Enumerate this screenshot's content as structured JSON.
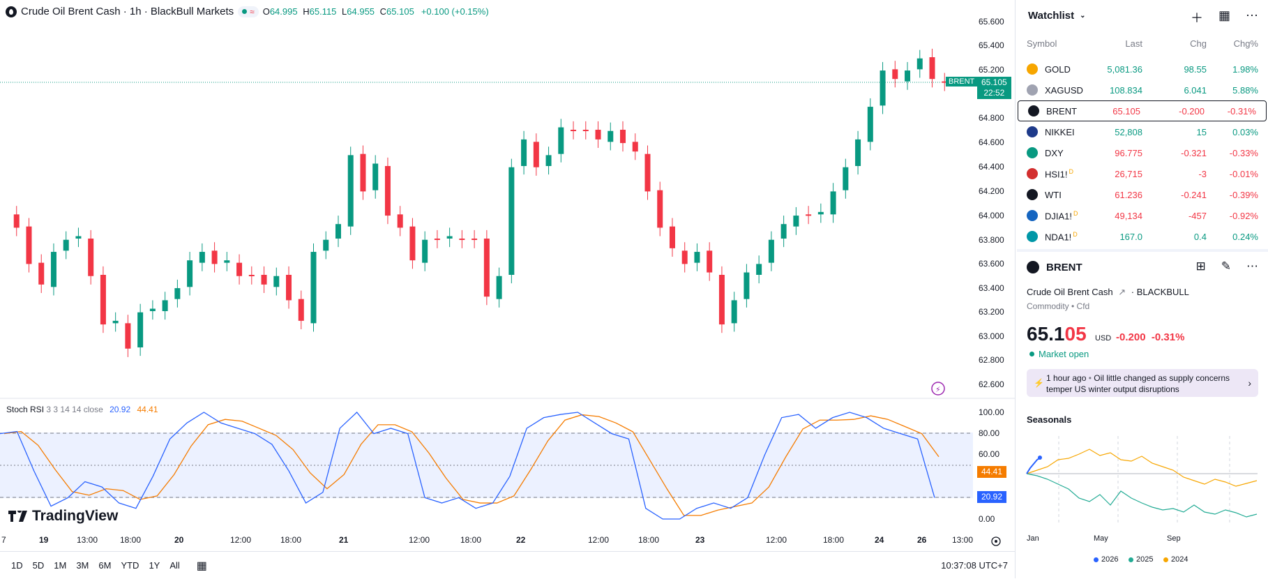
{
  "symbol_legend": {
    "title": "Crude Oil Brent Cash · 1h · BlackBull Markets",
    "ohlc": [
      {
        "k": "O",
        "v": "64.995"
      },
      {
        "k": "H",
        "v": "65.115"
      },
      {
        "k": "L",
        "v": "64.955"
      },
      {
        "k": "C",
        "v": "65.105"
      }
    ],
    "change": "+0.100 (+0.15%)"
  },
  "price_axis": [
    "65.600",
    "65.400",
    "65.200",
    "64.800",
    "64.600",
    "64.400",
    "64.200",
    "64.000",
    "63.800",
    "63.600",
    "63.400",
    "63.200",
    "63.000",
    "62.800",
    "62.600"
  ],
  "price_tag": {
    "symbol": "BRENT",
    "price": "65.105",
    "countdown": "22:52"
  },
  "stoch": {
    "name": "Stoch RSI",
    "params": "3 3 14 14 close",
    "k": "20.92",
    "d": "44.41",
    "axis": [
      "100.00",
      "80.00",
      "60.00",
      "0.00"
    ]
  },
  "time_axis": [
    "7",
    "19",
    "13:00",
    "18:00",
    "20",
    "12:00",
    "18:00",
    "21",
    "12:00",
    "18:00",
    "22",
    "12:00",
    "18:00",
    "23",
    "12:00",
    "18:00",
    "24",
    "26",
    "13:00"
  ],
  "timeframes": [
    "1D",
    "5D",
    "1M",
    "3M",
    "6M",
    "YTD",
    "1Y",
    "All"
  ],
  "clock": "10:37:08 UTC+7",
  "logo": "TradingView",
  "watchlist": {
    "title": "Watchlist",
    "columns": {
      "symbol": "Symbol",
      "last": "Last",
      "chg": "Chg",
      "chgp": "Chg%"
    },
    "rows": [
      {
        "symbol": "GOLD",
        "last": "5,081.36",
        "chg": "98.55",
        "chgp": "1.98%",
        "dir": "up",
        "icon_color": "#f7a600",
        "icon": "gold-icon",
        "badge": ""
      },
      {
        "symbol": "XAGUSD",
        "last": "108.834",
        "chg": "6.041",
        "chgp": "5.88%",
        "dir": "up",
        "icon_color": "#a0a3b1",
        "icon": "silver-icon",
        "badge": ""
      },
      {
        "symbol": "BRENT",
        "last": "65.105",
        "chg": "-0.200",
        "chgp": "-0.31%",
        "dir": "dn",
        "icon_color": "#131722",
        "icon": "oil-drop-icon",
        "badge": ""
      },
      {
        "symbol": "NIKKEI",
        "last": "52,808",
        "chg": "15",
        "chgp": "0.03%",
        "dir": "up",
        "icon_color": "#1e3a8a",
        "icon": "nikkei-icon",
        "badge": ""
      },
      {
        "symbol": "DXY",
        "last": "96.775",
        "chg": "-0.321",
        "chgp": "-0.33%",
        "dir": "dn",
        "icon_color": "#089981",
        "icon": "dollar-icon",
        "badge": ""
      },
      {
        "symbol": "HSI1!",
        "last": "26,715",
        "chg": "-3",
        "chgp": "-0.01%",
        "dir": "dn",
        "icon_color": "#d32f2f",
        "icon": "hsi-icon",
        "badge": "D"
      },
      {
        "symbol": "WTI",
        "last": "61.236",
        "chg": "-0.241",
        "chgp": "-0.39%",
        "dir": "dn",
        "icon_color": "#131722",
        "icon": "oil-drop-icon",
        "badge": ""
      },
      {
        "symbol": "DJIA1!",
        "last": "49,134",
        "chg": "-457",
        "chgp": "-0.92%",
        "dir": "dn",
        "icon_color": "#1565c0",
        "icon": "us-flag-icon",
        "badge": "D"
      },
      {
        "symbol": "NDA1!",
        "last": "167.0",
        "chg": "0.4",
        "chgp": "0.24%",
        "dir": "up",
        "icon_color": "#0097a7",
        "icon": "nda-icon",
        "badge": "D"
      }
    ]
  },
  "details": {
    "symbol": "BRENT",
    "name": "Crude Oil Brent Cash",
    "exchange": "BLACKBULL",
    "type": "Commodity • Cfd",
    "price_main": "65.1",
    "price_hi": "05",
    "currency": "USD",
    "change": "-0.200",
    "change_pct": "-0.31%",
    "status": "Market open",
    "news_ago": "1 hour ago",
    "news_text": "Oil little changed as supply concerns temper US winter output disruptions"
  },
  "seasonals": {
    "title": "Seasonals",
    "x_labels": [
      "Jan",
      "May",
      "Sep"
    ],
    "legend": [
      {
        "year": "2026",
        "color": "#2962ff"
      },
      {
        "year": "2025",
        "color": "#22ab94"
      },
      {
        "year": "2024",
        "color": "#f7a600"
      }
    ]
  },
  "colors": {
    "up": "#089981",
    "down": "#f23645",
    "k_line": "#2962ff",
    "d_line": "#f57c00"
  }
}
